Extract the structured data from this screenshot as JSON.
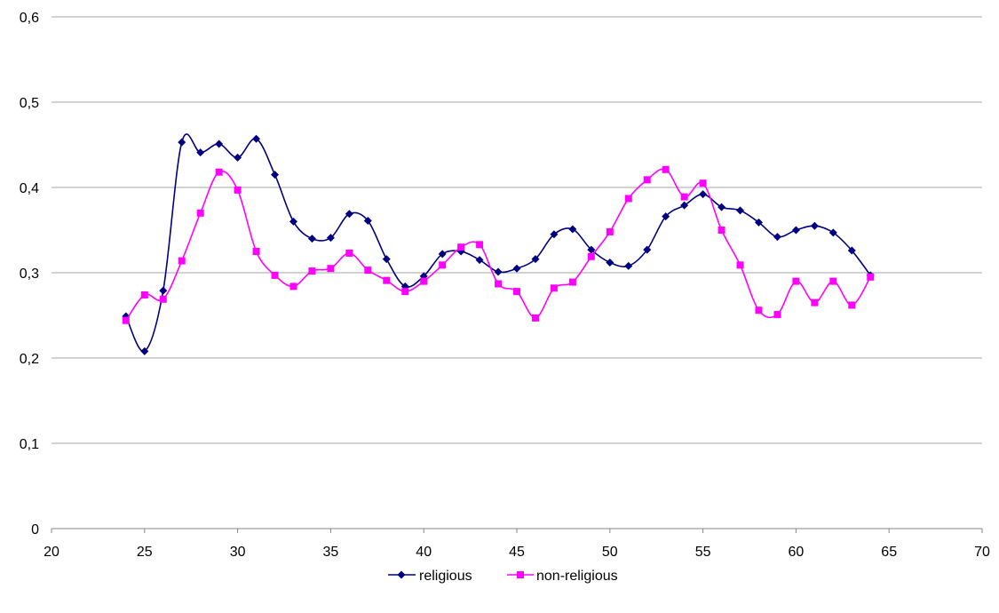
{
  "chart_data": {
    "type": "line",
    "title": "",
    "xlabel": "",
    "ylabel": "",
    "xlim": [
      20,
      70
    ],
    "ylim": [
      0,
      0.6
    ],
    "x_ticks": [
      20,
      25,
      30,
      35,
      40,
      45,
      50,
      55,
      60,
      65,
      70
    ],
    "y_ticks": [
      0,
      0.1,
      0.2,
      0.3,
      0.4,
      0.5,
      0.6
    ],
    "x_tick_labels": [
      "20",
      "25",
      "30",
      "35",
      "40",
      "45",
      "50",
      "55",
      "60",
      "65",
      "70"
    ],
    "y_tick_labels": [
      "0",
      "0,1",
      "0,2",
      "0,3",
      "0,4",
      "0,5",
      "0,6"
    ],
    "grid": "horizontal",
    "legend_position": "bottom",
    "smooth": true,
    "x": [
      24,
      25,
      26,
      27,
      28,
      29,
      30,
      31,
      32,
      33,
      34,
      35,
      36,
      37,
      38,
      39,
      40,
      41,
      42,
      43,
      44,
      45,
      46,
      47,
      48,
      49,
      50,
      51,
      52,
      53,
      54,
      55,
      56,
      57,
      58,
      59,
      60,
      61,
      62,
      63,
      64
    ],
    "series": [
      {
        "name": "religious",
        "color": "#000080",
        "marker": "diamond",
        "values": [
          0.249,
          0.208,
          0.279,
          0.453,
          0.441,
          0.451,
          0.435,
          0.457,
          0.415,
          0.36,
          0.34,
          0.341,
          0.369,
          0.361,
          0.316,
          0.284,
          0.296,
          0.322,
          0.325,
          0.315,
          0.301,
          0.305,
          0.316,
          0.345,
          0.351,
          0.327,
          0.312,
          0.308,
          0.327,
          0.366,
          0.379,
          0.392,
          0.377,
          0.373,
          0.359,
          0.342,
          0.35,
          0.355,
          0.347,
          0.326,
          0.297
        ]
      },
      {
        "name": "non-religious",
        "color": "#ff00ff",
        "marker": "square",
        "values": [
          0.244,
          0.274,
          0.269,
          0.314,
          0.37,
          0.418,
          0.397,
          0.325,
          0.297,
          0.284,
          0.302,
          0.305,
          0.323,
          0.303,
          0.291,
          0.278,
          0.29,
          0.309,
          0.33,
          0.333,
          0.287,
          0.278,
          0.247,
          0.282,
          0.289,
          0.319,
          0.348,
          0.387,
          0.409,
          0.421,
          0.389,
          0.405,
          0.35,
          0.309,
          0.256,
          0.251,
          0.29,
          0.265,
          0.29,
          0.262,
          0.295
        ]
      }
    ]
  }
}
